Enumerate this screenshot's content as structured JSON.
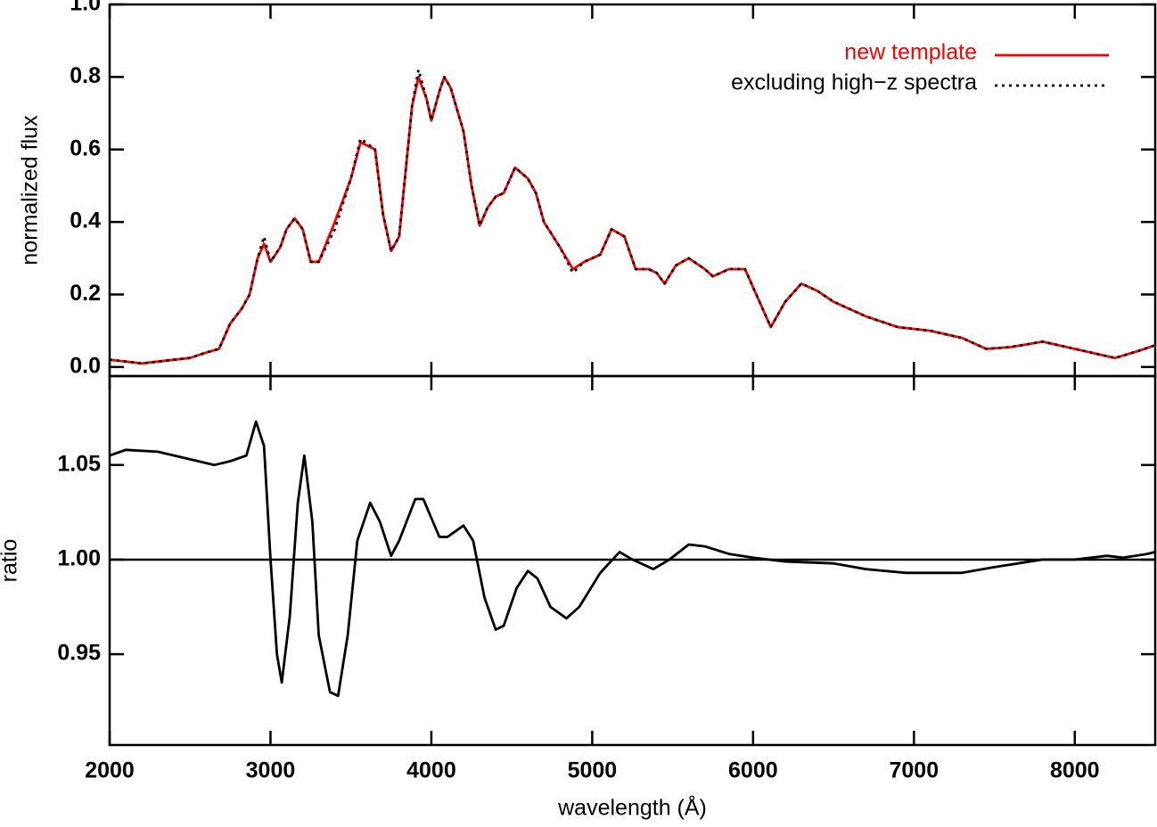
{
  "chart_data": [
    {
      "type": "line",
      "ylabel": "normalized flux",
      "xlim": [
        2000,
        8500
      ],
      "xticks": [
        2000,
        3000,
        4000,
        5000,
        6000,
        7000,
        8000
      ],
      "show_xticklabels": false,
      "ylim": [
        -0.025,
        1.0
      ],
      "yticks": [
        {
          "value": 0,
          "label": "0.0"
        },
        0.2,
        0.4,
        0.6,
        0.8,
        {
          "value": 1,
          "label": "1.0"
        }
      ],
      "legend": "upper right",
      "x": [
        2000,
        2100,
        2200,
        2300,
        2400,
        2500,
        2600,
        2680,
        2750,
        2820,
        2870,
        2920,
        2960,
        3000,
        3060,
        3100,
        3150,
        3200,
        3250,
        3300,
        3400,
        3500,
        3560,
        3650,
        3700,
        3750,
        3800,
        3880,
        3920,
        3970,
        4000,
        4050,
        4080,
        4120,
        4200,
        4250,
        4300,
        4350,
        4400,
        4450,
        4520,
        4600,
        4650,
        4700,
        4800,
        4880,
        4950,
        5050,
        5120,
        5200,
        5270,
        5350,
        5400,
        5450,
        5520,
        5600,
        5700,
        5750,
        5850,
        5950,
        6050,
        6110,
        6200,
        6300,
        6400,
        6500,
        6700,
        6900,
        7100,
        7300,
        7450,
        7600,
        7800,
        8000,
        8250,
        8400,
        8500
      ],
      "series": [
        {
          "name": "new template",
          "color": "#ff0000",
          "dash": "solid",
          "values": [
            0.02,
            0.015,
            0.01,
            0.015,
            0.02,
            0.025,
            0.04,
            0.05,
            0.12,
            0.16,
            0.2,
            0.3,
            0.34,
            0.29,
            0.33,
            0.38,
            0.41,
            0.38,
            0.29,
            0.29,
            0.4,
            0.52,
            0.62,
            0.6,
            0.42,
            0.32,
            0.36,
            0.72,
            0.8,
            0.74,
            0.68,
            0.76,
            0.8,
            0.77,
            0.65,
            0.5,
            0.39,
            0.44,
            0.47,
            0.48,
            0.55,
            0.52,
            0.48,
            0.4,
            0.33,
            0.27,
            0.29,
            0.31,
            0.38,
            0.36,
            0.27,
            0.27,
            0.26,
            0.23,
            0.28,
            0.3,
            0.27,
            0.25,
            0.27,
            0.27,
            0.17,
            0.11,
            0.18,
            0.23,
            0.21,
            0.18,
            0.14,
            0.11,
            0.1,
            0.08,
            0.05,
            0.055,
            0.07,
            0.05,
            0.025,
            0.045,
            0.06
          ]
        },
        {
          "name": "excluding high−z spectra",
          "color": "#000000",
          "dash": "dotted",
          "values": [
            0.02,
            0.015,
            0.01,
            0.015,
            0.02,
            0.025,
            0.04,
            0.05,
            0.12,
            0.16,
            0.2,
            0.3,
            0.36,
            0.29,
            0.33,
            0.38,
            0.41,
            0.38,
            0.29,
            0.29,
            0.38,
            0.52,
            0.63,
            0.6,
            0.42,
            0.32,
            0.36,
            0.72,
            0.82,
            0.74,
            0.68,
            0.76,
            0.8,
            0.77,
            0.65,
            0.5,
            0.39,
            0.44,
            0.47,
            0.48,
            0.55,
            0.52,
            0.48,
            0.4,
            0.33,
            0.26,
            0.29,
            0.31,
            0.38,
            0.36,
            0.27,
            0.27,
            0.26,
            0.23,
            0.28,
            0.3,
            0.27,
            0.25,
            0.27,
            0.27,
            0.17,
            0.11,
            0.18,
            0.23,
            0.21,
            0.18,
            0.14,
            0.11,
            0.1,
            0.08,
            0.05,
            0.055,
            0.07,
            0.05,
            0.025,
            0.045,
            0.06
          ]
        }
      ]
    },
    {
      "type": "line",
      "xlabel": "wavelength (Å)",
      "ylabel": "ratio",
      "xlim": [
        2000,
        8500
      ],
      "xticks": [
        2000,
        3000,
        4000,
        5000,
        6000,
        7000,
        8000
      ],
      "show_xticklabels": true,
      "ylim": [
        0.902,
        1.097
      ],
      "yticks": [
        0.95,
        {
          "value": 1,
          "label": "1.00"
        },
        1.05
      ],
      "hline": 1,
      "x": [
        2000,
        2100,
        2300,
        2450,
        2650,
        2750,
        2850,
        2910,
        2960,
        3000,
        3040,
        3070,
        3120,
        3170,
        3210,
        3260,
        3300,
        3370,
        3420,
        3480,
        3540,
        3620,
        3680,
        3750,
        3800,
        3900,
        3950,
        4050,
        4100,
        4200,
        4260,
        4330,
        4400,
        4450,
        4530,
        4600,
        4660,
        4740,
        4840,
        4920,
        5050,
        5170,
        5250,
        5380,
        5480,
        5600,
        5700,
        5850,
        6000,
        6200,
        6500,
        6700,
        6950,
        7300,
        7500,
        7800,
        8000,
        8200,
        8300,
        8450,
        8500
      ],
      "series": [
        {
          "color": "#000000",
          "dash": "solid",
          "values": [
            1.055,
            1.058,
            1.057,
            1.054,
            1.05,
            1.052,
            1.055,
            1.073,
            1.06,
            1.0,
            0.95,
            0.935,
            0.97,
            1.03,
            1.055,
            1.02,
            0.96,
            0.93,
            0.928,
            0.96,
            1.01,
            1.03,
            1.02,
            1.002,
            1.01,
            1.032,
            1.032,
            1.012,
            1.012,
            1.018,
            1.01,
            0.98,
            0.963,
            0.965,
            0.985,
            0.994,
            0.99,
            0.975,
            0.969,
            0.975,
            0.993,
            1.004,
            1.0,
            0.995,
            1.0,
            1.008,
            1.007,
            1.003,
            1.001,
            0.999,
            0.998,
            0.995,
            0.993,
            0.993,
            0.996,
            1.0,
            1.0,
            1.002,
            1.001,
            1.003,
            1.004
          ]
        }
      ]
    }
  ]
}
